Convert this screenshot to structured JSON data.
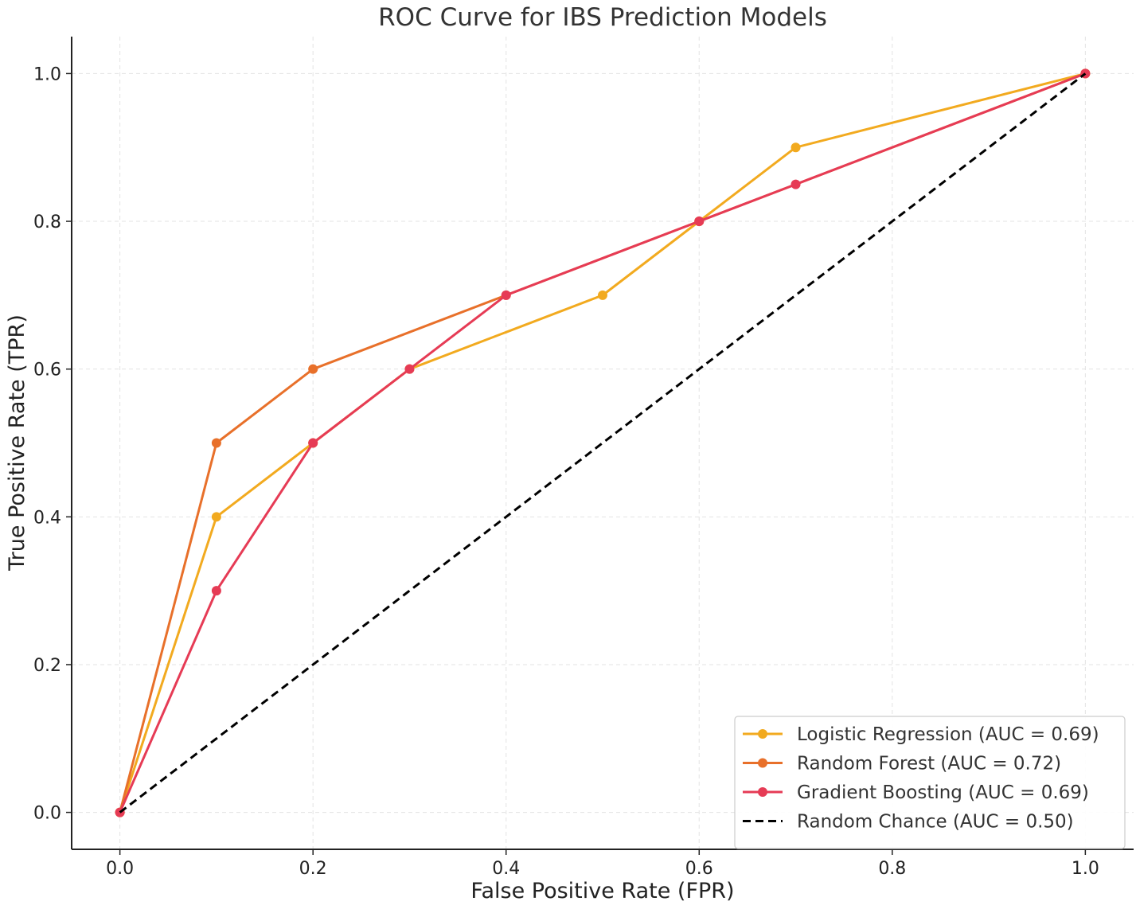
{
  "chart_data": {
    "type": "line",
    "title": "ROC Curve for IBS Prediction Models",
    "xlabel": "False Positive Rate (FPR)",
    "ylabel": "True Positive Rate (TPR)",
    "xlim": [
      -0.05,
      1.05
    ],
    "ylim": [
      -0.05,
      1.05
    ],
    "xticks": [
      "0.0",
      "0.2",
      "0.4",
      "0.6",
      "0.8",
      "1.0"
    ],
    "yticks": [
      "0.0",
      "0.2",
      "0.4",
      "0.6",
      "0.8",
      "1.0"
    ],
    "grid": true,
    "legend_position": "bottom-right",
    "series": [
      {
        "name": "Logistic Regression (AUC = 0.69)",
        "color": "#F2AA1F",
        "style": "solid-marker",
        "x": [
          0.0,
          0.1,
          0.2,
          0.3,
          0.5,
          0.6,
          0.7,
          1.0
        ],
        "y": [
          0.0,
          0.4,
          0.5,
          0.6,
          0.7,
          0.8,
          0.9,
          1.0
        ]
      },
      {
        "name": "Random Forest (AUC = 0.72)",
        "color": "#E8702A",
        "style": "solid-marker",
        "x": [
          0.0,
          0.1,
          0.2,
          0.4,
          0.6,
          1.0
        ],
        "y": [
          0.0,
          0.5,
          0.6,
          0.7,
          0.8,
          1.0
        ]
      },
      {
        "name": "Gradient Boosting (AUC = 0.69)",
        "color": "#E63B55",
        "style": "solid-marker",
        "x": [
          0.0,
          0.1,
          0.2,
          0.3,
          0.4,
          0.6,
          0.7,
          1.0
        ],
        "y": [
          0.0,
          0.3,
          0.5,
          0.6,
          0.7,
          0.8,
          0.85,
          1.0
        ]
      },
      {
        "name": "Random Chance (AUC = 0.50)",
        "color": "#000000",
        "style": "dashed",
        "x": [
          0.0,
          1.0
        ],
        "y": [
          0.0,
          1.0
        ]
      }
    ]
  }
}
